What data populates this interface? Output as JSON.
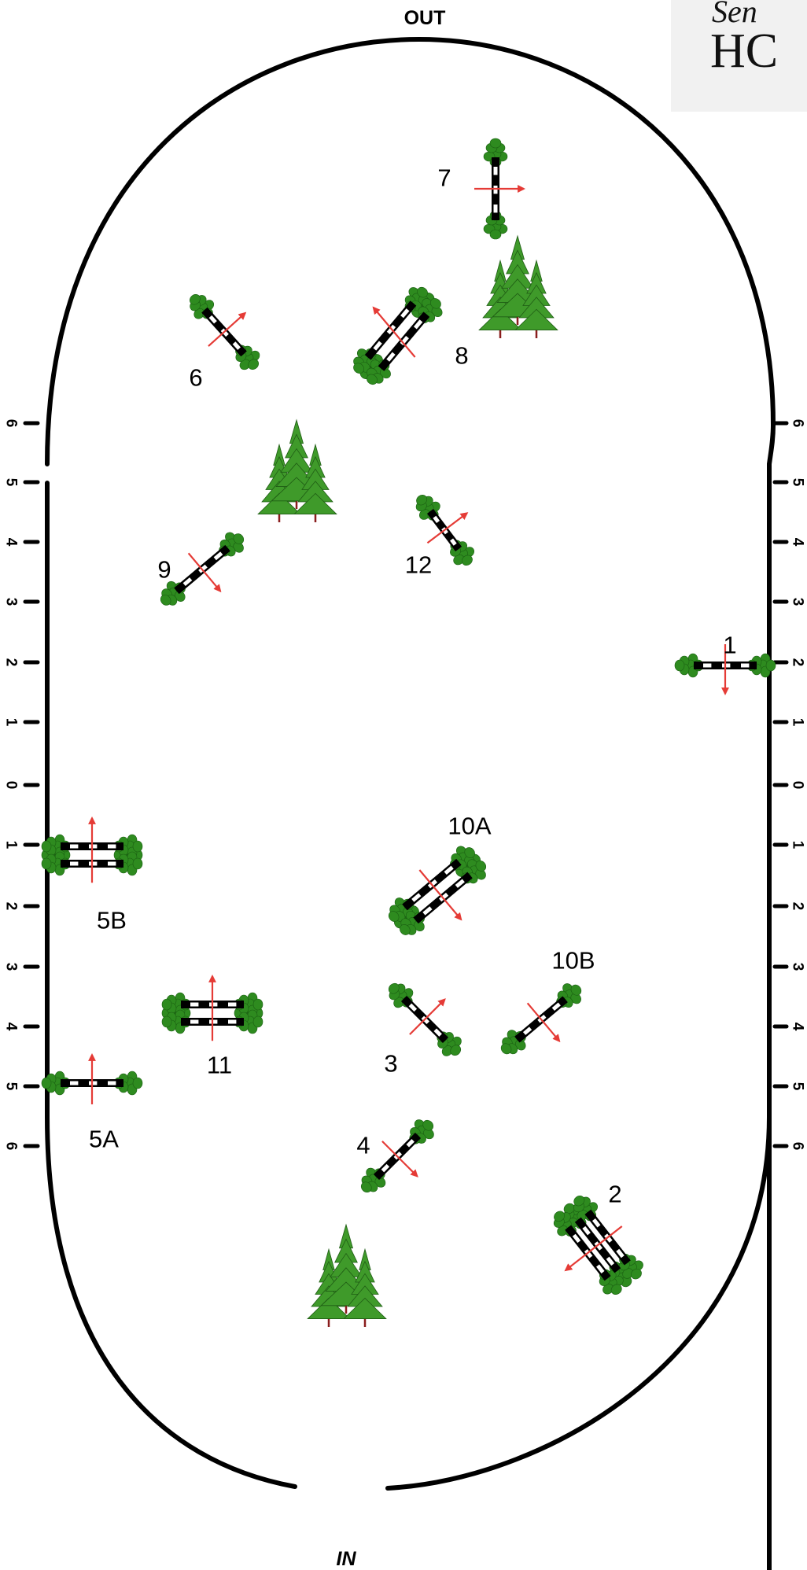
{
  "entrance": {
    "out_label": "OUT",
    "in_label": "IN"
  },
  "logo": {
    "script_text": "Sen",
    "letters": "HC",
    "bg": "#f1f1f1"
  },
  "ruler": {
    "left": [
      "6",
      "5",
      "4",
      "3",
      "2",
      "1",
      "0",
      "1",
      "2",
      "3",
      "4",
      "5",
      "6"
    ],
    "right": [
      "6",
      "5",
      "4",
      "3",
      "2",
      "1",
      "0",
      "1",
      "2",
      "3",
      "4",
      "5",
      "6"
    ]
  },
  "colors": {
    "rail": "#000000",
    "plank": "#ffffff",
    "shrub": "#2e8b1f",
    "tree": "#3f9a2a",
    "arrow": "#e53b36",
    "trunk": "#8a1d1d"
  },
  "jumps": [
    {
      "id": "1",
      "label": "1",
      "type": "vertical"
    },
    {
      "id": "2",
      "label": "2",
      "type": "triple"
    },
    {
      "id": "3",
      "label": "3",
      "type": "vertical"
    },
    {
      "id": "4",
      "label": "4",
      "type": "vertical"
    },
    {
      "id": "5a",
      "label": "5A",
      "type": "vertical"
    },
    {
      "id": "5b",
      "label": "5B",
      "type": "oxer"
    },
    {
      "id": "6",
      "label": "6",
      "type": "vertical"
    },
    {
      "id": "7",
      "label": "7",
      "type": "vertical"
    },
    {
      "id": "8",
      "label": "8",
      "type": "oxer"
    },
    {
      "id": "9",
      "label": "9",
      "type": "vertical"
    },
    {
      "id": "10a",
      "label": "10A",
      "type": "oxer"
    },
    {
      "id": "10b",
      "label": "10B",
      "type": "vertical"
    },
    {
      "id": "11",
      "label": "11",
      "type": "oxer"
    },
    {
      "id": "12",
      "label": "12",
      "type": "vertical"
    }
  ],
  "trees": [
    {
      "id": "north",
      "count": 3
    },
    {
      "id": "center",
      "count": 3
    },
    {
      "id": "south",
      "count": 3
    }
  ]
}
